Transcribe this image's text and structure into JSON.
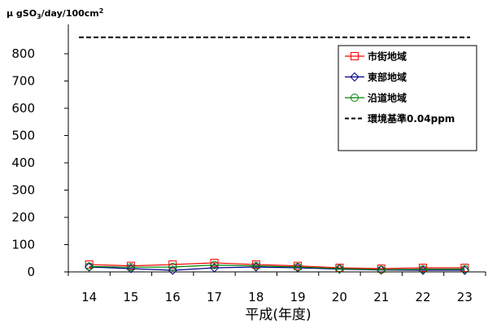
{
  "chart_data": {
    "type": "line",
    "ylabel_prefix": "μ gSO",
    "ylabel_sub": "3",
    "ylabel_mid": "/day/100cm",
    "ylabel_sup": "2",
    "xlabel": "平成(年度)",
    "categories": [
      "14",
      "15",
      "16",
      "17",
      "18",
      "19",
      "20",
      "21",
      "22",
      "23"
    ],
    "ylim": [
      0,
      860
    ],
    "yticks": [
      0,
      100,
      200,
      300,
      400,
      500,
      600,
      700,
      800
    ],
    "series": [
      {
        "name": "市街地域",
        "color": "#ff0000",
        "marker": "square",
        "values": [
          27,
          22,
          27,
          33,
          27,
          22,
          15,
          12,
          15,
          15
        ]
      },
      {
        "name": "東部地域",
        "color": "#00008b",
        "marker": "diamond",
        "values": [
          18,
          12,
          6,
          15,
          18,
          15,
          10,
          7,
          6,
          6
        ]
      },
      {
        "name": "沿道地域",
        "color": "#008000",
        "marker": "circle",
        "values": [
          20,
          17,
          18,
          25,
          22,
          18,
          12,
          8,
          10,
          10
        ]
      }
    ],
    "reference_line": {
      "name": "環境基準0.04ppm",
      "value": 860,
      "color": "#000000",
      "style": "dashed"
    },
    "legend_position": "top-right",
    "grid": false
  }
}
